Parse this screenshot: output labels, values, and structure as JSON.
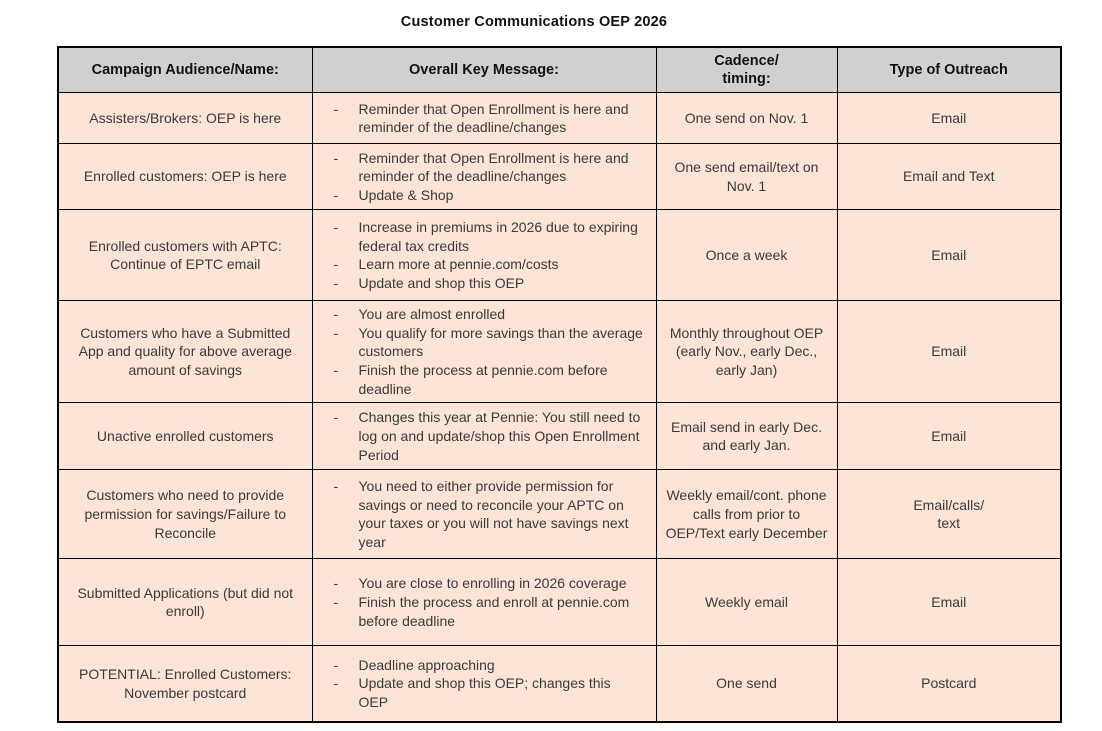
{
  "title": "Customer Communications OEP 2026",
  "colors": {
    "header_bg": "#d0d0d0",
    "row_bg": "#fce5d6",
    "border": "#000000",
    "title_text": "#111111",
    "body_text": "#3a3a3a"
  },
  "table": {
    "headers": [
      "Campaign Audience/Name:",
      "Overall Key Message:",
      "Cadence/\ntiming:",
      "Type of Outreach"
    ],
    "rows": [
      {
        "audience": "Assisters/Brokers: OEP is here",
        "messages": [
          "Reminder that Open Enrollment is here and reminder of the deadline/changes"
        ],
        "cadence": "One send on Nov. 1",
        "outreach": "Email"
      },
      {
        "audience": "Enrolled customers: OEP is here",
        "messages": [
          "Reminder that Open Enrollment is here and reminder of the deadline/changes",
          "Update & Shop"
        ],
        "cadence": "One send email/text on Nov. 1",
        "outreach": "Email and Text"
      },
      {
        "audience": "Enrolled customers with APTC: Continue of EPTC email",
        "messages": [
          "Increase in premiums in 2026 due to expiring federal tax credits",
          "Learn more at pennie.com/costs",
          "Update and shop this OEP"
        ],
        "cadence": "Once a week",
        "outreach": "Email"
      },
      {
        "audience": "Customers who have a Submitted App and quality for above average amount of savings",
        "messages": [
          "You are almost enrolled",
          "You qualify for more savings than the average customers",
          "Finish the process at pennie.com before deadline"
        ],
        "cadence": "Monthly throughout OEP (early Nov., early Dec., early Jan)",
        "outreach": "Email"
      },
      {
        "audience": "Unactive enrolled customers",
        "messages": [
          "Changes this year at Pennie: You still need to log on and update/shop this Open Enrollment Period"
        ],
        "cadence": "Email send in early Dec. and early Jan.",
        "outreach": "Email"
      },
      {
        "audience": "Customers who need to provide permission for savings/Failure to Reconcile",
        "messages": [
          "You need to either provide permission for savings or need to reconcile your APTC on your taxes or you will not have savings next year"
        ],
        "cadence": "Weekly email/cont. phone calls from prior to OEP/Text early December",
        "outreach": "Email/calls/\ntext"
      },
      {
        "audience": "Submitted Applications (but did not enroll)",
        "messages": [
          "You are close to enrolling in 2026 coverage",
          "Finish the process and enroll at pennie.com before deadline"
        ],
        "cadence": "Weekly email",
        "outreach": "Email"
      },
      {
        "audience": "POTENTIAL: Enrolled Customers: November postcard",
        "messages": [
          "Deadline approaching",
          "Update and shop this OEP; changes this OEP"
        ],
        "cadence": "One send",
        "outreach": "Postcard"
      }
    ]
  }
}
